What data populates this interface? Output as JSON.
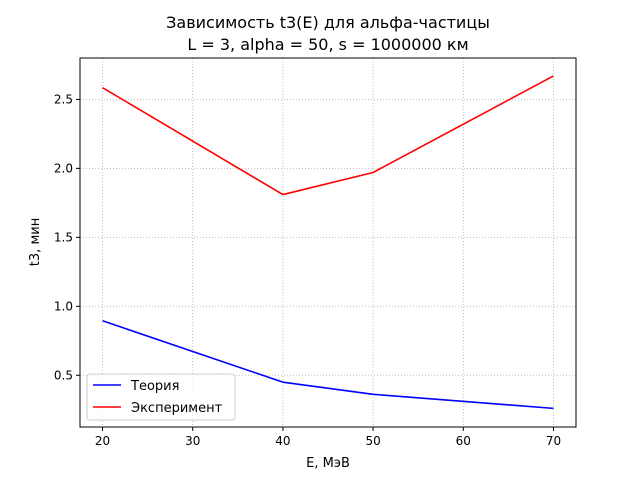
{
  "chart_data": {
    "type": "line",
    "title": "Зависимость t3(E) для альфа-частицы",
    "subtitle": "L = 3, alpha = 50, s = 1000000 км",
    "xlabel": "E, МэВ",
    "ylabel": "t3, мин",
    "x": [
      20,
      40,
      50,
      70
    ],
    "xlim": [
      17.5,
      72.5
    ],
    "ylim": [
      0.125,
      2.8
    ],
    "xticks": [
      20,
      30,
      40,
      50,
      60,
      70
    ],
    "yticks": [
      0.5,
      1.0,
      1.5,
      2.0,
      2.5
    ],
    "xtick_labels": [
      "20",
      "30",
      "40",
      "50",
      "60",
      "70"
    ],
    "ytick_labels": [
      "0.5",
      "1.0",
      "1.5",
      "2.0",
      "2.5"
    ],
    "grid": true,
    "legend_position": "lower-left",
    "series": [
      {
        "name": "Теория",
        "color": "#0000ff",
        "values": [
          0.895,
          0.45,
          0.362,
          0.26
        ]
      },
      {
        "name": "Эксперимент",
        "color": "#ff0000",
        "values": [
          2.585,
          1.81,
          1.97,
          2.67
        ]
      }
    ]
  }
}
